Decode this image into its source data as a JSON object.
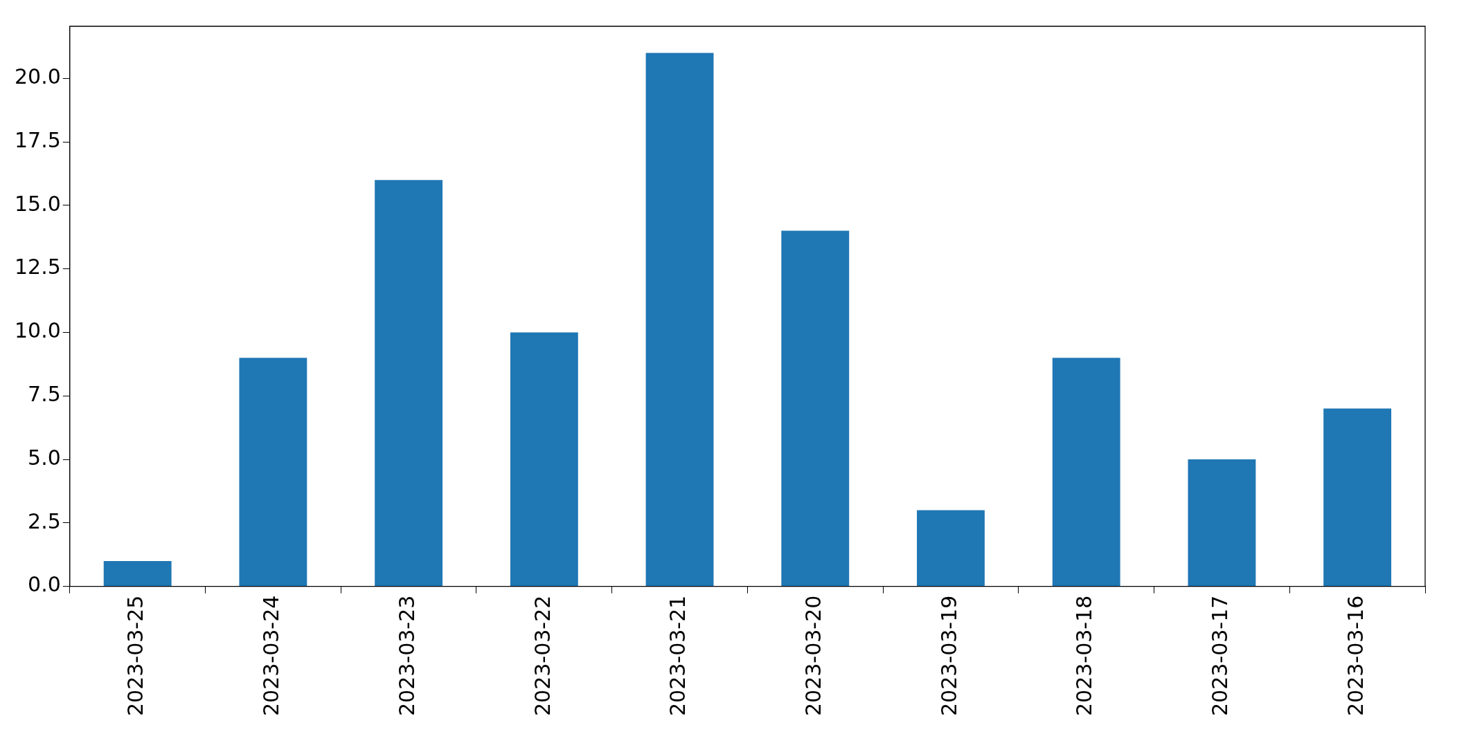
{
  "chart_data": {
    "type": "bar",
    "categories": [
      "2023-03-25",
      "2023-03-24",
      "2023-03-23",
      "2023-03-22",
      "2023-03-21",
      "2023-03-20",
      "2023-03-19",
      "2023-03-18",
      "2023-03-17",
      "2023-03-16"
    ],
    "values": [
      1,
      9,
      16,
      10,
      21,
      14,
      3,
      9,
      5,
      7
    ],
    "color": "#1f77b4",
    "ylim": [
      0,
      22.05
    ],
    "yticks": [
      {
        "value": 0,
        "label": "0.0"
      },
      2.5,
      {
        "value": 5,
        "label": "5.0"
      },
      7.5,
      {
        "value": 10,
        "label": "10.0"
      },
      12.5,
      {
        "value": 15,
        "label": "15.0"
      },
      17.5,
      {
        "value": 20,
        "label": "20.0"
      }
    ],
    "grid": false,
    "legend": false
  }
}
